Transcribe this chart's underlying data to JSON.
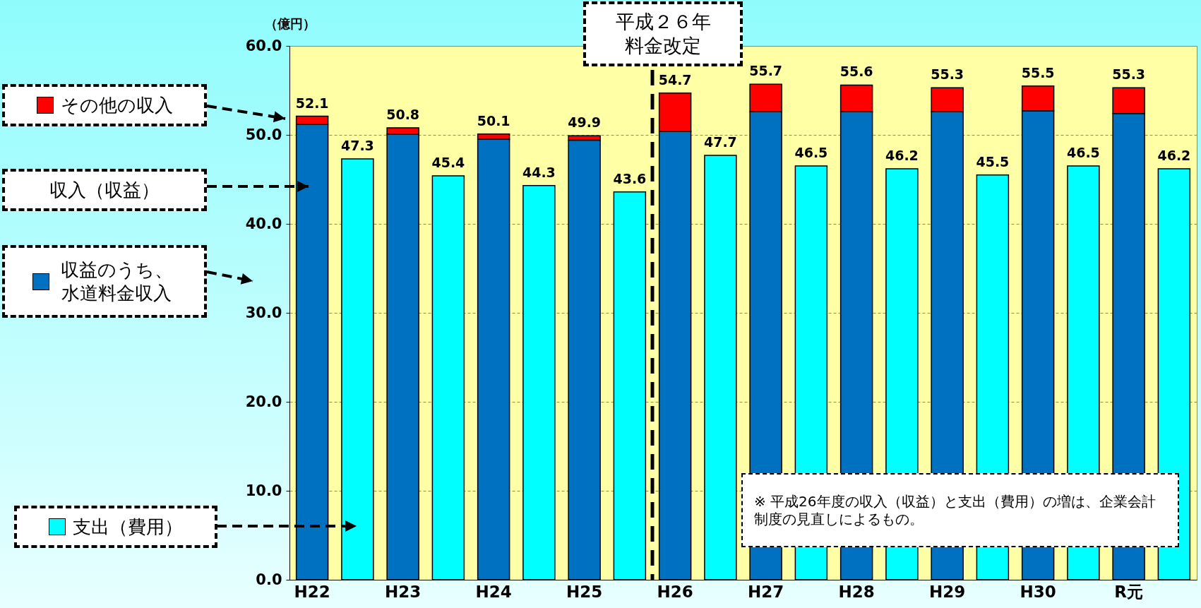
{
  "chart_data": {
    "type": "bar",
    "ylabel": "（億円）",
    "stacked": true,
    "categories": [
      "H22",
      null,
      "H23",
      null,
      "H24",
      null,
      "H25",
      null,
      "H26",
      null,
      "H27",
      null,
      "H28",
      null,
      "H29",
      null,
      "H30",
      null,
      "R元",
      null
    ],
    "series": [
      {
        "name": "収益のうち、水道料金収入",
        "color": "#0070c0",
        "values": [
          51.2,
          null,
          50.1,
          null,
          49.5,
          null,
          49.4,
          null,
          50.4,
          null,
          52.6,
          null,
          52.6,
          null,
          52.6,
          null,
          52.7,
          null,
          52.4,
          null
        ]
      },
      {
        "name": "その他の収入",
        "color": "#ff0000",
        "values": [
          0.9,
          null,
          0.7,
          null,
          0.6,
          null,
          0.5,
          null,
          4.3,
          null,
          3.1,
          null,
          3.0,
          null,
          2.7,
          null,
          2.8,
          null,
          2.9,
          null
        ]
      },
      {
        "name": "支出（費用）",
        "color": "#00ffff",
        "values": [
          null,
          47.3,
          null,
          45.4,
          null,
          44.3,
          null,
          43.6,
          null,
          47.7,
          null,
          46.5,
          null,
          46.2,
          null,
          45.5,
          null,
          46.5,
          null,
          46.2
        ],
        "value_labels": [
          null,
          "47.3",
          null,
          "45.4",
          null,
          "44.3",
          null,
          "43.6",
          null,
          "47.7",
          null,
          "46.5",
          null,
          "46.2",
          null,
          "45.5",
          null,
          "46.5",
          null,
          "46.2"
        ]
      }
    ],
    "totals": [
      "52.1",
      null,
      "50.8",
      null,
      "50.1",
      null,
      "49.9",
      null,
      "54.7",
      null,
      "55.7",
      null,
      "55.6",
      null,
      "55.3",
      null,
      "55.5",
      null,
      "55.3",
      null
    ],
    "ylim": [
      0,
      60
    ],
    "yticks": [
      {
        "value": 0,
        "label": "0.0"
      },
      {
        "value": 10,
        "label": "10.0"
      },
      {
        "value": 20,
        "label": "20.0"
      },
      {
        "value": 30,
        "label": "30.0"
      },
      {
        "value": 40,
        "label": "40.0"
      },
      {
        "value": 50,
        "label": "50.0"
      },
      {
        "value": 60,
        "label": "60.0"
      }
    ],
    "grid": "y",
    "legend": "left",
    "ref_lines": [
      {
        "axis": "x",
        "value": "H26",
        "label": "平成２６年料金改定",
        "line_style": "dashed"
      }
    ],
    "annotations": [
      "収入（収益）",
      "※ 平成26年度の収入（収益）と支出（費用）の増は、企業会計制度の見直しによるもの。"
    ]
  }
}
